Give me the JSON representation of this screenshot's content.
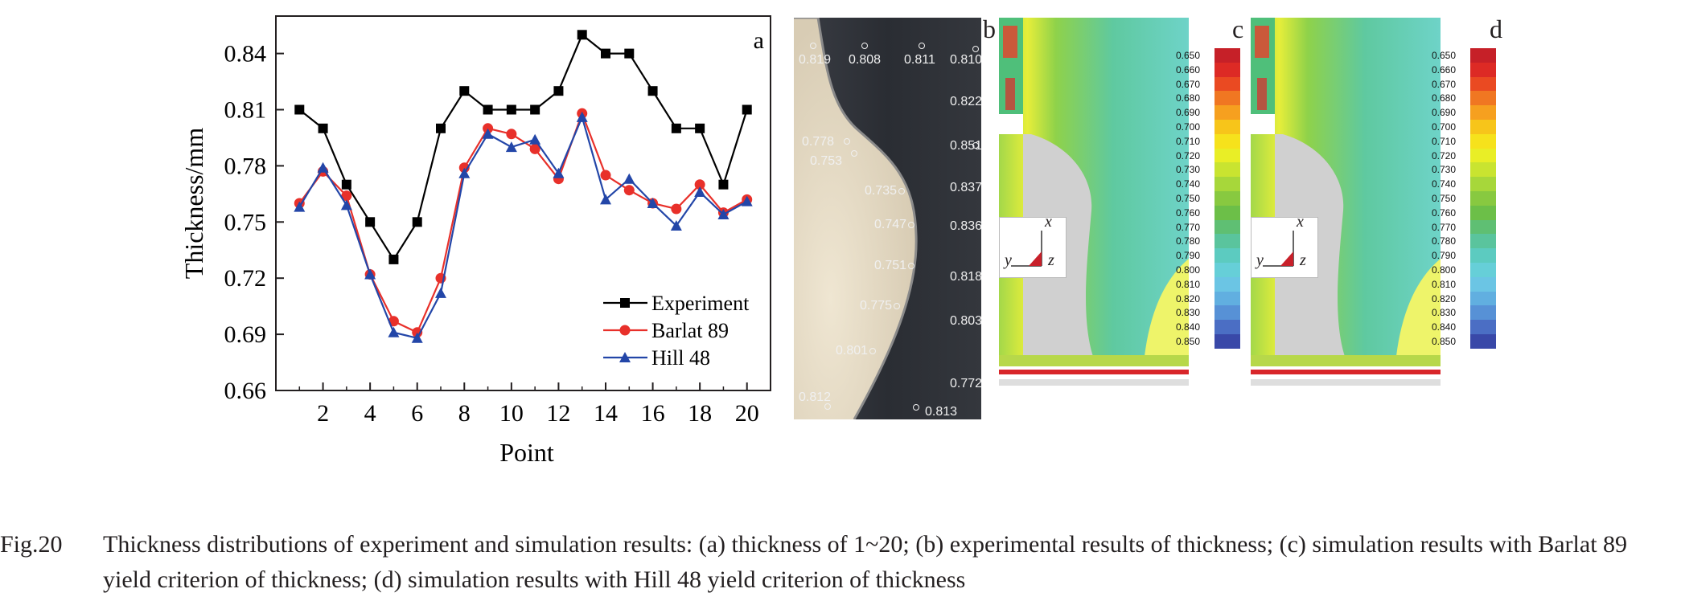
{
  "chart_data": {
    "type": "line",
    "panel_letter": "a",
    "xlabel": "Point",
    "ylabel": "Thickness/mm",
    "xlim": [
      0,
      21
    ],
    "ylim": [
      0.66,
      0.86
    ],
    "xticks": [
      2,
      4,
      6,
      8,
      10,
      12,
      14,
      16,
      18,
      20
    ],
    "yticks": [
      0.66,
      0.69,
      0.72,
      0.75,
      0.78,
      0.81,
      0.84
    ],
    "legend_position": "bottom-right",
    "x": [
      1,
      2,
      3,
      4,
      5,
      6,
      7,
      8,
      9,
      10,
      11,
      12,
      13,
      14,
      15,
      16,
      17,
      18,
      19,
      20
    ],
    "series": [
      {
        "name": "Experiment",
        "marker": "square",
        "color": "#000000",
        "values": [
          0.81,
          0.8,
          0.77,
          0.75,
          0.73,
          0.75,
          0.8,
          0.82,
          0.81,
          0.81,
          0.81,
          0.82,
          0.85,
          0.84,
          0.84,
          0.82,
          0.8,
          0.8,
          0.77,
          0.81
        ]
      },
      {
        "name": "Barlat 89",
        "marker": "circle",
        "color": "#e8302a",
        "values": [
          0.76,
          0.777,
          0.764,
          0.722,
          0.697,
          0.691,
          0.72,
          0.779,
          0.8,
          0.797,
          0.789,
          0.773,
          0.808,
          0.775,
          0.767,
          0.76,
          0.757,
          0.77,
          0.755,
          0.762
        ]
      },
      {
        "name": "Hill 48",
        "marker": "triangle",
        "color": "#2346a8",
        "values": [
          0.758,
          0.779,
          0.759,
          0.722,
          0.691,
          0.688,
          0.712,
          0.776,
          0.797,
          0.79,
          0.794,
          0.776,
          0.806,
          0.762,
          0.773,
          0.76,
          0.748,
          0.766,
          0.754,
          0.761
        ]
      }
    ]
  },
  "panel_b": {
    "letter": "b",
    "labels": [
      "0.819",
      "0.808",
      "0.811",
      "0.810",
      "0.822",
      "0.778",
      "0.753",
      "0.851",
      "0.735",
      "0.837",
      "0.747",
      "0.836",
      "0.751",
      "0.818",
      "0.775",
      "0.803",
      "0.801",
      "0.772",
      "0.812",
      "0.813"
    ]
  },
  "panel_c": {
    "letter": "c"
  },
  "panel_d": {
    "letter": "d"
  },
  "scale": {
    "values": [
      "0.650",
      "0.660",
      "0.670",
      "0.680",
      "0.690",
      "0.700",
      "0.710",
      "0.720",
      "0.730",
      "0.740",
      "0.750",
      "0.760",
      "0.770",
      "0.780",
      "0.790",
      "0.800",
      "0.810",
      "0.820",
      "0.830",
      "0.840",
      "0.850"
    ],
    "colors": [
      "#c62028",
      "#dd2a25",
      "#ea4a22",
      "#f07722",
      "#f6a01f",
      "#f7c51a",
      "#f6e21c",
      "#e9ee26",
      "#c9e430",
      "#a7d73a",
      "#88c940",
      "#6cbf48",
      "#5fbf73",
      "#5ac49d",
      "#5ccbc0",
      "#66cfd8",
      "#6bc5e4",
      "#61afe0",
      "#5791d6",
      "#4b6ec4",
      "#3948a8"
    ]
  },
  "axes_triad": {
    "x": "x",
    "y": "y",
    "z": "z"
  },
  "caption": {
    "figure_number": "Fig.20",
    "text": "Thickness distributions of experiment and simulation results: (a) thickness of 1~20; (b) experimental results of thickness; (c) simulation results with Barlat 89 yield criterion of thickness; (d) simulation results with Hill 48 yield criterion of thickness"
  }
}
